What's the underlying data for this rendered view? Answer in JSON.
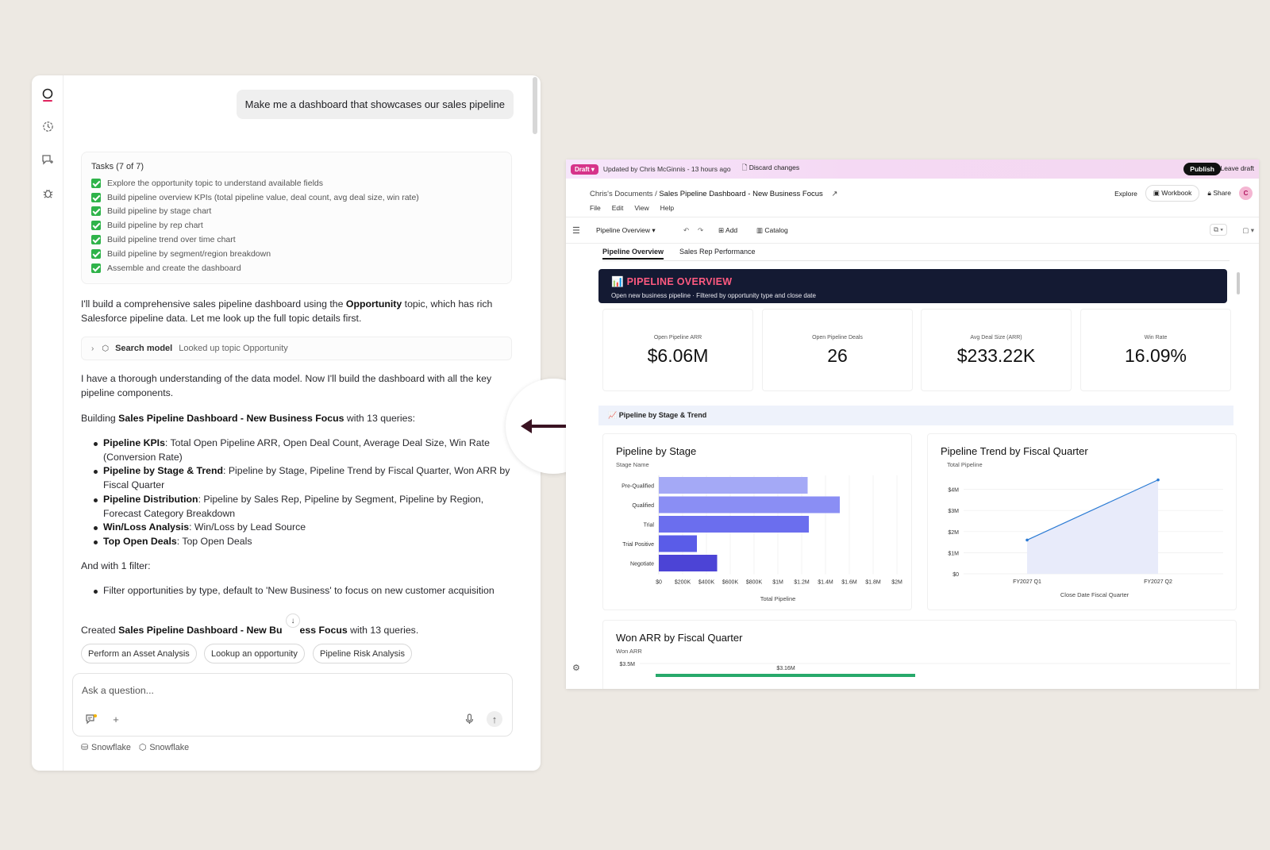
{
  "chat": {
    "user_message": "Make me a dashboard that showcases our sales pipeline",
    "tasks_title": "Tasks (7 of 7)",
    "tasks": [
      "Explore the opportunity topic to understand available fields",
      "Build pipeline overview KPIs (total pipeline value, deal count, avg deal size, win rate)",
      "Build pipeline by stage chart",
      "Build pipeline by rep chart",
      "Build pipeline trend over time chart",
      "Build pipeline by segment/region breakdown",
      "Assemble and create the dashboard"
    ],
    "msg1_a": "I'll build a comprehensive sales pipeline dashboard using the ",
    "msg1_b": "Opportunity",
    "msg1_c": " topic, which has rich Salesforce pipeline data. Let me look up the full topic details first.",
    "tool_name": "Search model",
    "tool_desc": "Looked up topic Opportunity",
    "msg2": "I have a thorough understanding of the data model. Now I'll build the dashboard with all the key pipeline components.",
    "msg3_a": "Building ",
    "msg3_b": "Sales Pipeline Dashboard - New Business Focus",
    "msg3_c": " with 13 queries:",
    "bullets": [
      {
        "head": "Pipeline KPIs",
        "text": ": Total Open Pipeline ARR, Open Deal Count, Average Deal Size, Win Rate (Conversion Rate)"
      },
      {
        "head": "Pipeline by Stage & Trend",
        "text": ": Pipeline by Stage, Pipeline Trend by Fiscal Quarter, Won ARR by Fiscal Quarter"
      },
      {
        "head": "Pipeline Distribution",
        "text": ": Pipeline by Sales Rep, Pipeline by Segment, Pipeline by Region, Forecast Category Breakdown"
      },
      {
        "head": "Win/Loss Analysis",
        "text": ": Win/Loss by Lead Source"
      },
      {
        "head": "Top Open Deals",
        "text": ": Top Open Deals"
      }
    ],
    "msg4": "And with 1 filter:",
    "filter_bullet": "Filter opportunities by type, default to 'New Business' to focus on new customer acquisition",
    "msg5_a": "Created ",
    "msg5_b": "Sales Pipeline Dashboard - New Bu",
    "msg5_b2": "ess Focus",
    "msg5_c": " with 13 queries.",
    "suggestions": [
      "Perform an Asset Analysis",
      "Lookup an opportunity",
      "Pipeline Risk Analysis"
    ],
    "ask_placeholder": "Ask a question...",
    "sources": [
      "Snowflake",
      "Snowflake"
    ]
  },
  "dashboard": {
    "draft_label": "Draft",
    "updated_text": "Updated by Chris McGinnis - 13 hours ago",
    "discard_label": "Discard changes",
    "publish_label": "Publish",
    "leave_label": "Leave draft",
    "breadcrumb_parent": "Chris's Documents",
    "breadcrumb_sep": "/",
    "breadcrumb_current": "Sales Pipeline Dashboard - New Business Focus",
    "menus": [
      "File",
      "Edit",
      "View",
      "Help"
    ],
    "explore_label": "Explore",
    "workbook_label": "Workbook",
    "share_label": "Share",
    "avatar_letter": "C",
    "page_select": "Pipeline Overview",
    "add_label": "Add",
    "catalog_label": "Catalog",
    "tabs": [
      "Pipeline Overview",
      "Sales Rep Performance"
    ],
    "banner_title": "PIPELINE OVERVIEW",
    "banner_sub": "Open new business pipeline · Filtered by opportunity type and close date",
    "kpis": [
      {
        "label": "Open Pipeline ARR",
        "value": "$6.06M"
      },
      {
        "label": "Open Pipeline Deals",
        "value": "26"
      },
      {
        "label": "Avg Deal Size (ARR)",
        "value": "$233.22K"
      },
      {
        "label": "Win Rate",
        "value": "16.09%"
      }
    ],
    "section_title": "📈 Pipeline by Stage & Trend",
    "accent": "#d6338a"
  },
  "chart_data": [
    {
      "type": "bar",
      "title": "Pipeline by Stage",
      "ylabel": "Stage Name",
      "xlabel": "Total Pipeline",
      "categories": [
        "Pre-Qualified",
        "Qualified",
        "Trial",
        "Trial Positive",
        "Negotiate"
      ],
      "values": [
        1.25,
        1.52,
        1.26,
        0.32,
        0.49
      ],
      "unit": "$M",
      "xlim": [
        0,
        2
      ],
      "xticks": [
        "$0",
        "$200K",
        "$400K",
        "$600K",
        "$800K",
        "$1M",
        "$1.2M",
        "$1.4M",
        "$1.6M",
        "$1.8M",
        "$2M"
      ],
      "colors": [
        "#a4a9f6",
        "#8a8ef4",
        "#6b6eee",
        "#5a5ce8",
        "#4c44d6"
      ]
    },
    {
      "type": "area",
      "title": "Pipeline Trend by Fiscal Quarter",
      "ylabel": "Total Pipeline",
      "xlabel": "Close Date Fiscal Quarter",
      "categories": [
        "FY2027 Q1",
        "FY2027 Q2"
      ],
      "values": [
        1.6,
        4.45
      ],
      "unit": "$M",
      "ylim": [
        0,
        5
      ],
      "yticks": [
        "$0",
        "$1M",
        "$2M",
        "$3M",
        "$4M"
      ],
      "color": "#2b7bd4"
    },
    {
      "type": "bar",
      "title": "Won ARR by Fiscal Quarter",
      "ylabel": "Won ARR",
      "yticks": [
        "$3.5M"
      ],
      "data_labels": [
        "$3.16M"
      ],
      "values": [
        3.16
      ],
      "unit": "$M",
      "color": "#27a96b"
    }
  ]
}
